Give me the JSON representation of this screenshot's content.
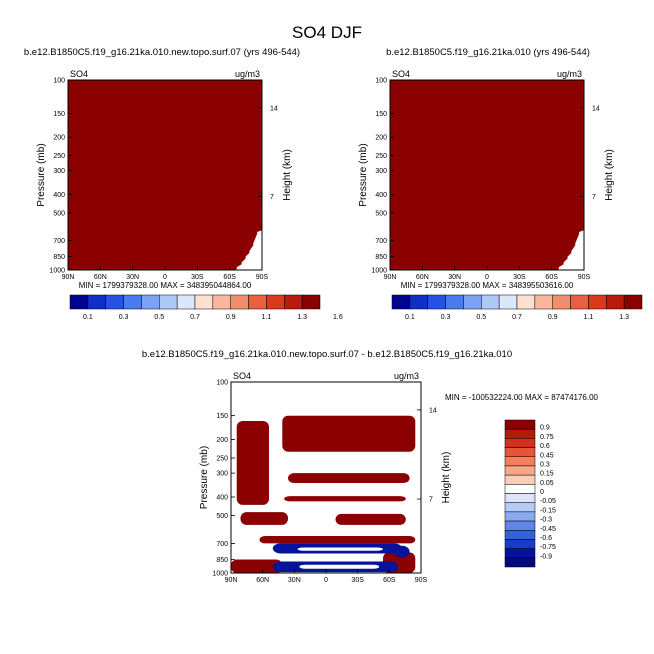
{
  "title": "SO4 DJF",
  "chart_data": [
    {
      "type": "heatmap",
      "title": "b.e12.B1850C5.f19_g16.21ka.010.new.topo.surf.07 (yrs 496-544)",
      "left_label": "SO4",
      "units": "ug/m3",
      "ylabel": "Pressure (mb)",
      "ylabel_right": "Height (km)",
      "x_ticks": [
        "90N",
        "60N",
        "30N",
        "0",
        "30S",
        "60S",
        "90S"
      ],
      "y_ticks": [
        "100",
        "150",
        "200",
        "250",
        "300",
        "400",
        "500",
        "700",
        "850",
        "1000"
      ],
      "y_ticks_right": [
        "14",
        "7"
      ],
      "stats": "MIN = 1799379328.00    MAX = 348395044864.00",
      "fill_color": "#8b0000",
      "colorbar_labels": [
        "0.1",
        "0.3",
        "0.5",
        "0.7",
        "0.9",
        "1.1",
        "1.3",
        "1.6"
      ],
      "colorbar_colors": [
        "#00058f",
        "#0f2fc8",
        "#2452e4",
        "#4a7af0",
        "#7ba2f4",
        "#aec8f8",
        "#dbe7fb",
        "#fde0d0",
        "#f9b79b",
        "#f28d6e",
        "#e86040",
        "#d93a1c",
        "#b81b0b",
        "#8b0000"
      ]
    },
    {
      "type": "heatmap",
      "title": "b.e12.B1850C5.f19_g16.21ka.010 (yrs 496-544)",
      "left_label": "SO4",
      "units": "ug/m3",
      "ylabel": "Pressure (mb)",
      "ylabel_right": "Height (km)",
      "x_ticks": [
        "90N",
        "60N",
        "30N",
        "0",
        "30S",
        "60S",
        "90S"
      ],
      "y_ticks": [
        "100",
        "150",
        "200",
        "250",
        "300",
        "400",
        "500",
        "700",
        "850",
        "1000"
      ],
      "y_ticks_right": [
        "14",
        "7"
      ],
      "stats": "MIN = 1799379328.00    MAX = 348395503616.00",
      "fill_color": "#8b0000",
      "colorbar_labels": [
        "0.1",
        "0.3",
        "0.5",
        "0.7",
        "0.9",
        "1.1",
        "1.3",
        "1.6"
      ],
      "colorbar_colors": [
        "#00058f",
        "#0f2fc8",
        "#2452e4",
        "#4a7af0",
        "#7ba2f4",
        "#aec8f8",
        "#dbe7fb",
        "#fde0d0",
        "#f9b79b",
        "#f28d6e",
        "#e86040",
        "#d93a1c",
        "#b81b0b",
        "#8b0000"
      ]
    },
    {
      "type": "heatmap",
      "title": "b.e12.B1850C5.f19_g16.21ka.010.new.topo.surf.07 - b.e12.B1850C5.f19_g16.21ka.010",
      "left_label": "SO4",
      "units": "ug/m3",
      "ylabel": "Pressure (mb)",
      "ylabel_right": "Height (km)",
      "x_ticks": [
        "90N",
        "60N",
        "30N",
        "0",
        "30S",
        "60S",
        "90S"
      ],
      "y_ticks": [
        "100",
        "150",
        "200",
        "250",
        "300",
        "400",
        "500",
        "700",
        "850",
        "1000"
      ],
      "y_ticks_right": [
        "14",
        "7"
      ],
      "stats": "MIN = -100532224.00   MAX = 87474176.00",
      "colorbar_labels": [
        "0.9",
        "0.75",
        "0.6",
        "0.45",
        "0.3",
        "0.15",
        "0.05",
        "0",
        "-0.05",
        "-0.15",
        "-0.3",
        "-0.45",
        "-0.6",
        "-0.75",
        "-0.9"
      ],
      "colorbar_colors": [
        "#8b0000",
        "#b41a0a",
        "#d2301a",
        "#e65436",
        "#f27f5e",
        "#f8a888",
        "#fbcdb6",
        "#ffffff",
        "#dbe6fb",
        "#b5cbf6",
        "#8caaf0",
        "#5f86e8",
        "#3560dc",
        "#1a3ac8",
        "#05129c",
        "#000a7a"
      ]
    }
  ]
}
